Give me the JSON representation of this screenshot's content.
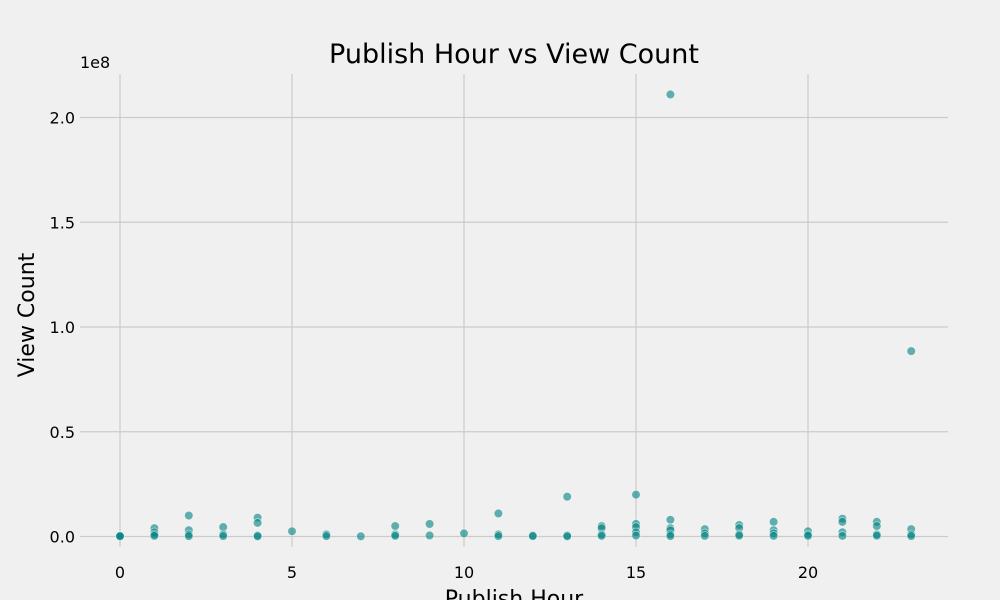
{
  "chart_data": {
    "type": "scatter",
    "title": "Publish Hour vs View Count",
    "xlabel": "Publish Hour",
    "ylabel": "View Count",
    "y_offset_label": "1e8",
    "xlim": [
      -0.5,
      24
    ],
    "ylim": [
      -0.05,
      2.2
    ],
    "x_ticks": [
      0,
      5,
      10,
      15,
      20
    ],
    "x_tick_labels": [
      "0",
      "5",
      "10",
      "15",
      "20"
    ],
    "y_ticks": [
      0,
      0.5,
      1.0,
      1.5,
      2.0
    ],
    "y_tick_labels": [
      "0.0",
      "0.5",
      "1.0",
      "1.5",
      "2.0"
    ],
    "grid": true,
    "point_color": "#008080",
    "background": "#f0f0f0",
    "points": [
      [
        0,
        0.005
      ],
      [
        0,
        0.003
      ],
      [
        0,
        0.001
      ],
      [
        1,
        0.04
      ],
      [
        1,
        0.02
      ],
      [
        1,
        0.01
      ],
      [
        1,
        0.003
      ],
      [
        2,
        0.1
      ],
      [
        2,
        0.03
      ],
      [
        2,
        0.01
      ],
      [
        2,
        0.002
      ],
      [
        3,
        0.045
      ],
      [
        3,
        0.01
      ],
      [
        3,
        0.002
      ],
      [
        4,
        0.09
      ],
      [
        4,
        0.065
      ],
      [
        4,
        0.005
      ],
      [
        4,
        0.001
      ],
      [
        5,
        0.025
      ],
      [
        6,
        0.01
      ],
      [
        6,
        0.002
      ],
      [
        7,
        0.001
      ],
      [
        8,
        0.05
      ],
      [
        8,
        0.01
      ],
      [
        8,
        0.003
      ],
      [
        9,
        0.06
      ],
      [
        9,
        0.005
      ],
      [
        10,
        0.015
      ],
      [
        11,
        0.11
      ],
      [
        11,
        0.01
      ],
      [
        11,
        0.002
      ],
      [
        12,
        0.005
      ],
      [
        12,
        0.002
      ],
      [
        13,
        0.19
      ],
      [
        13,
        0.005
      ],
      [
        13,
        0.001
      ],
      [
        14,
        0.05
      ],
      [
        14,
        0.04
      ],
      [
        14,
        0.01
      ],
      [
        14,
        0.003
      ],
      [
        15,
        0.2
      ],
      [
        15,
        0.06
      ],
      [
        15,
        0.045
      ],
      [
        15,
        0.02
      ],
      [
        15,
        0.005
      ],
      [
        16,
        2.11
      ],
      [
        16,
        0.08
      ],
      [
        16,
        0.04
      ],
      [
        16,
        0.03
      ],
      [
        16,
        0.01
      ],
      [
        16,
        0.002
      ],
      [
        17,
        0.035
      ],
      [
        17,
        0.015
      ],
      [
        17,
        0.003
      ],
      [
        18,
        0.055
      ],
      [
        18,
        0.04
      ],
      [
        18,
        0.01
      ],
      [
        18,
        0.004
      ],
      [
        19,
        0.07
      ],
      [
        19,
        0.03
      ],
      [
        19,
        0.015
      ],
      [
        19,
        0.003
      ],
      [
        20,
        0.025
      ],
      [
        20,
        0.01
      ],
      [
        20,
        0.003
      ],
      [
        21,
        0.085
      ],
      [
        21,
        0.07
      ],
      [
        21,
        0.02
      ],
      [
        21,
        0.003
      ],
      [
        22,
        0.07
      ],
      [
        22,
        0.05
      ],
      [
        22,
        0.01
      ],
      [
        22,
        0.004
      ],
      [
        23,
        0.885
      ],
      [
        23,
        0.035
      ],
      [
        23,
        0.01
      ],
      [
        23,
        0.002
      ]
    ]
  }
}
